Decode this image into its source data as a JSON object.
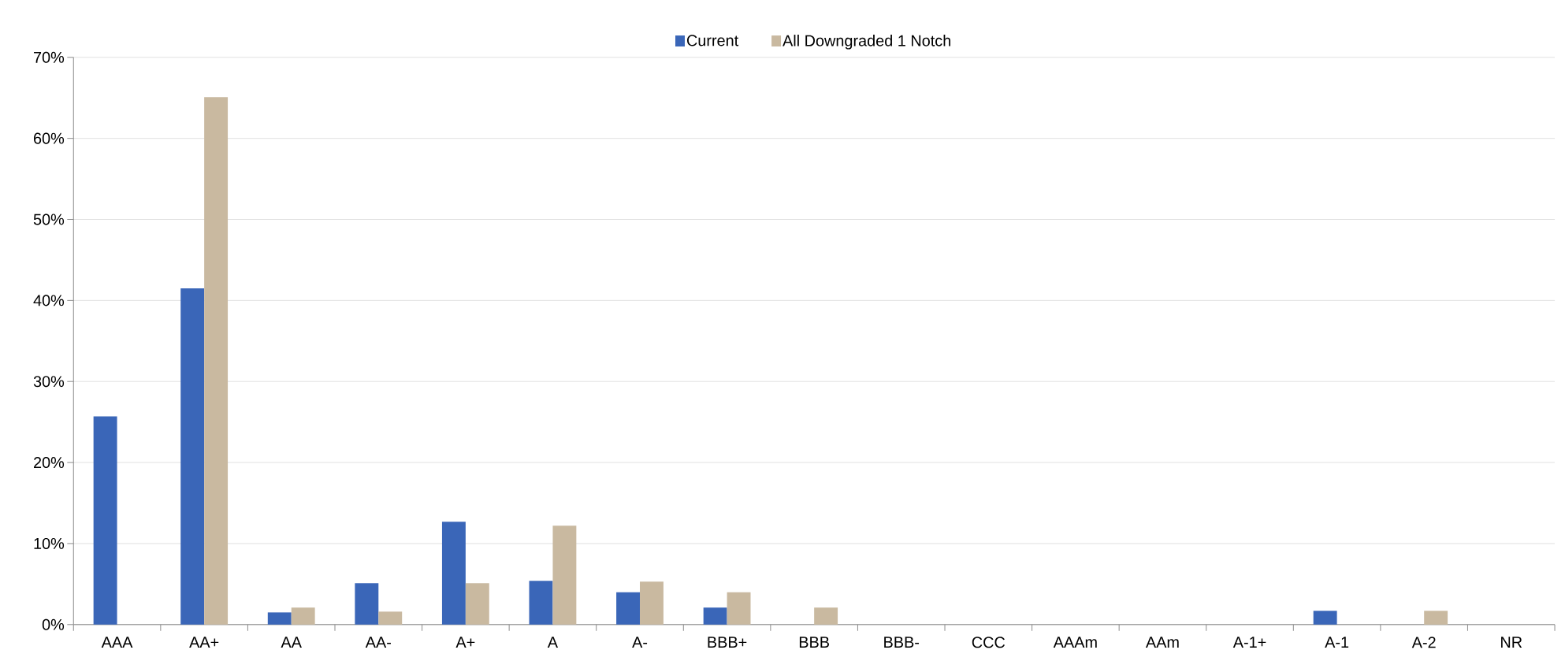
{
  "chart_data": {
    "type": "bar",
    "categories": [
      "AAA",
      "AA+",
      "AA",
      "AA-",
      "A+",
      "A",
      "A-",
      "BBB+",
      "BBB",
      "BBB-",
      "CCC",
      "AAAm",
      "AAm",
      "A-1+",
      "A-1",
      "A-2",
      "NR"
    ],
    "series": [
      {
        "name": "Current",
        "color": "#3a66b8",
        "values": [
          25.7,
          41.5,
          1.5,
          5.1,
          12.7,
          5.4,
          4.0,
          2.1,
          0,
          0,
          0,
          0,
          0,
          0,
          1.7,
          0,
          0
        ]
      },
      {
        "name": "All Downgraded 1 Notch",
        "color": "#c9b9a0",
        "values": [
          0,
          65.1,
          2.1,
          1.6,
          5.1,
          12.2,
          5.3,
          4.0,
          2.1,
          0,
          0,
          0,
          0,
          0,
          0,
          1.7,
          0
        ]
      }
    ],
    "ylim": [
      0,
      70
    ],
    "yticks": [
      {
        "value": 0,
        "label": "0%"
      },
      {
        "value": 10,
        "label": "10%"
      },
      {
        "value": 20,
        "label": "20%"
      },
      {
        "value": 30,
        "label": "30%"
      },
      {
        "value": 40,
        "label": "40%"
      },
      {
        "value": 50,
        "label": "50%"
      },
      {
        "value": 60,
        "label": "60%"
      },
      {
        "value": 70,
        "label": "70%"
      }
    ],
    "grid": "y",
    "legend": "top"
  }
}
